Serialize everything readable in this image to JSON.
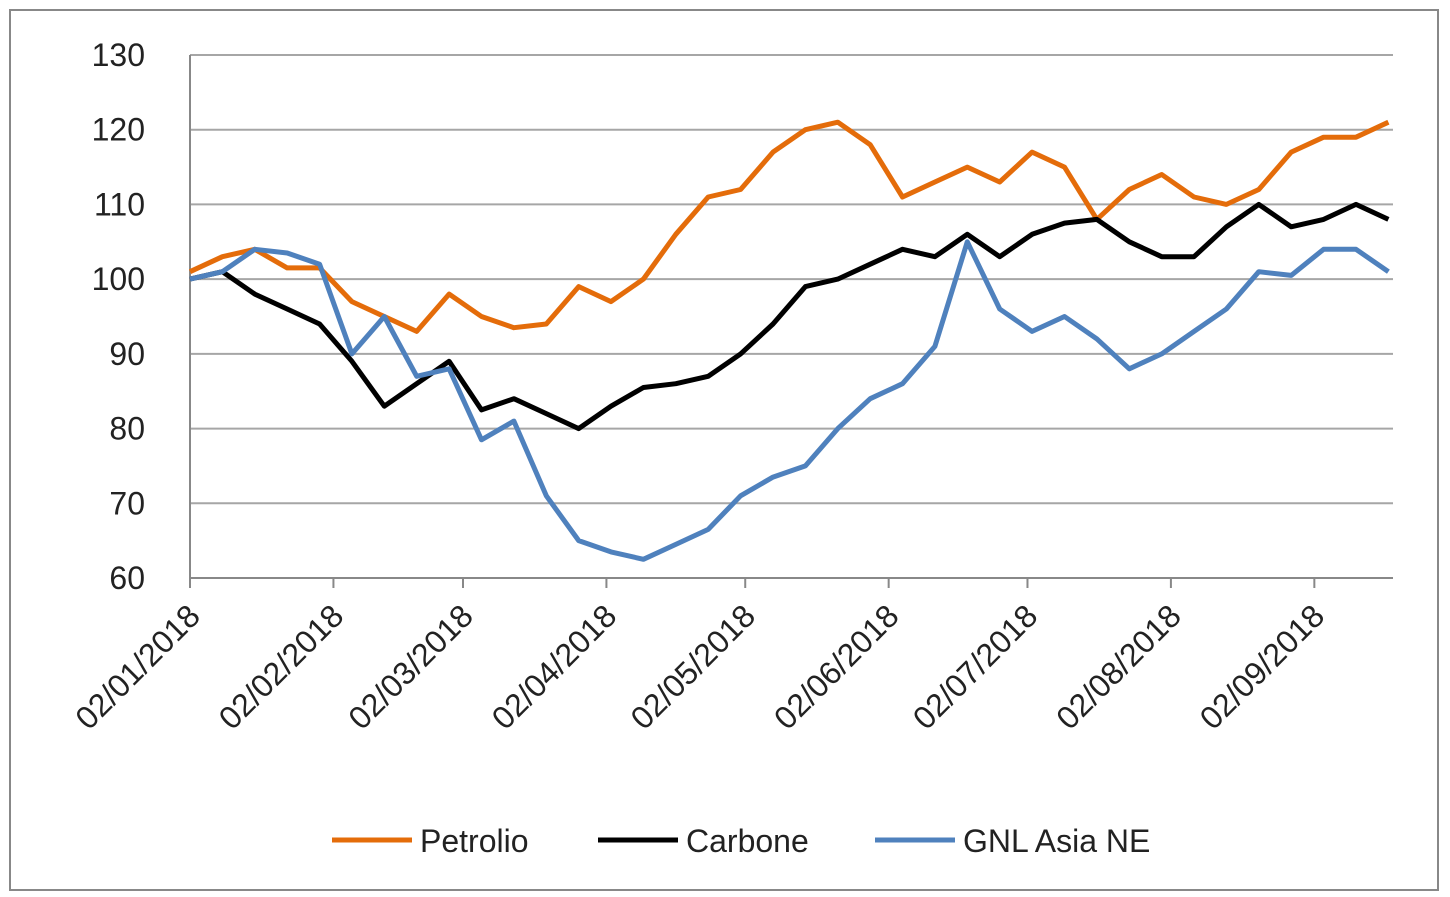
{
  "chart_data": {
    "type": "line",
    "x": [
      "02/01/2018",
      "09/01/2018",
      "16/01/2018",
      "23/01/2018",
      "30/01/2018",
      "06/02/2018",
      "13/02/2018",
      "20/02/2018",
      "27/02/2018",
      "06/03/2018",
      "13/03/2018",
      "20/03/2018",
      "27/03/2018",
      "03/04/2018",
      "10/04/2018",
      "17/04/2018",
      "24/04/2018",
      "01/05/2018",
      "08/05/2018",
      "15/05/2018",
      "22/05/2018",
      "29/05/2018",
      "05/06/2018",
      "12/06/2018",
      "19/06/2018",
      "26/06/2018",
      "03/07/2018",
      "10/07/2018",
      "17/07/2018",
      "24/07/2018",
      "31/07/2018",
      "07/08/2018",
      "14/08/2018",
      "21/08/2018",
      "28/08/2018",
      "04/09/2018",
      "11/09/2018",
      "18/09/2018"
    ],
    "series": [
      {
        "name": "Petrolio",
        "color": "#e46c0a",
        "values": [
          101,
          103,
          104,
          101.5,
          101.5,
          97,
          95,
          93,
          98,
          95,
          93.5,
          94,
          99,
          97,
          100,
          106,
          111,
          112,
          117,
          120,
          121,
          118,
          111,
          113,
          115,
          113,
          117,
          115,
          108,
          112,
          114,
          111,
          110,
          112,
          117,
          119,
          119,
          121
        ]
      },
      {
        "name": "Carbone",
        "color": "#000000",
        "values": [
          100,
          101,
          98,
          96,
          94,
          89,
          83,
          86,
          89,
          82.5,
          84,
          82,
          80,
          83,
          85.5,
          86,
          87,
          90,
          94,
          99,
          100,
          102,
          104,
          103,
          106,
          103,
          106,
          107.5,
          108,
          105,
          103,
          103,
          107,
          110,
          107,
          108,
          110,
          108
        ]
      },
      {
        "name": "GNL Asia NE",
        "color": "#4f81bd",
        "values": [
          100,
          101,
          104,
          103.5,
          102,
          90,
          95,
          87,
          88,
          78.5,
          81,
          71,
          65,
          63.5,
          62.5,
          64.5,
          66.5,
          71,
          73.5,
          75,
          80,
          84,
          86,
          91,
          105,
          96,
          93,
          95,
          92,
          88,
          90,
          93,
          96,
          101,
          100.5,
          104,
          104,
          101
        ]
      }
    ],
    "xlim": [
      "02/01/2018",
      "19/09/2018"
    ],
    "xticks": [
      "02/01/2018",
      "02/02/2018",
      "02/03/2018",
      "02/04/2018",
      "02/05/2018",
      "02/06/2018",
      "02/07/2018",
      "02/08/2018",
      "02/09/2018"
    ],
    "ylim": [
      60,
      130
    ],
    "yticks": [
      60,
      70,
      80,
      90,
      100,
      110,
      120,
      130
    ],
    "grid": true,
    "legend": "bottom"
  }
}
